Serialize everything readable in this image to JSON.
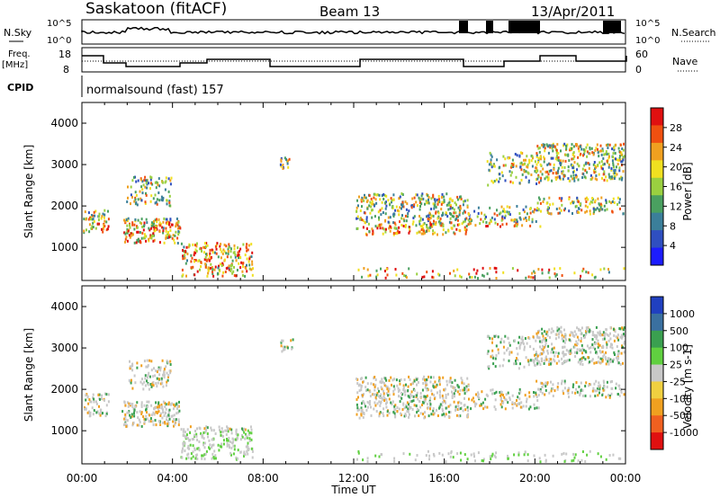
{
  "header": {
    "station": "Saskatoon (fitACF)",
    "beam": "Beam 13",
    "date": "13/Apr/2011"
  },
  "side_labels": {
    "nsky": "N.Sky",
    "nsearch": "N.Search",
    "freq_top": "Freq.",
    "freq_unit": "[MHz]",
    "nave": "Nave",
    "cpid": "CPID"
  },
  "cpid_text": "normalsound (fast) 157",
  "noise_panel": {
    "left_ticks": [
      "10^5",
      "10^0"
    ],
    "right_ticks": [
      "10^5",
      "10^0"
    ]
  },
  "freq_panel": {
    "left_ticks": [
      "18",
      "8"
    ],
    "right_ticks": [
      "60",
      "0"
    ]
  },
  "colors": {
    "power_scale": [
      "#1c1cff",
      "#2f4fc0",
      "#3b7f9a",
      "#4aa060",
      "#9ad040",
      "#f0e020",
      "#f0a020",
      "#f05010",
      "#e01010"
    ],
    "velocity_scale": [
      "#e01010",
      "#f06020",
      "#f0a020",
      "#f0d040",
      "#c8c8c8",
      "#60d040",
      "#3aa050",
      "#3a70a0",
      "#2040c0"
    ]
  },
  "chart_data": [
    {
      "type": "heatmap",
      "name": "power",
      "ylabel": "Slant Range [km]",
      "yticks": [
        1000,
        2000,
        3000,
        4000
      ],
      "ylim": [
        200,
        4500
      ],
      "xlabel": "",
      "colorbar_label": "Power [dB]",
      "colorbar_ticks": [
        "28",
        "24",
        "20",
        "16",
        "12",
        "8",
        "4"
      ]
    },
    {
      "type": "heatmap",
      "name": "velocity",
      "ylabel": "Slant Range [km]",
      "yticks": [
        1000,
        2000,
        3000,
        4000
      ],
      "ylim": [
        200,
        4500
      ],
      "xlabel": "Time UT",
      "xticks": [
        "00:00",
        "04:00",
        "08:00",
        "12:00",
        "16:00",
        "20:00",
        "00:00"
      ],
      "colorbar_label": "Velocity [m s-1]",
      "colorbar_ticks": [
        "1000",
        "500",
        "100",
        "25",
        "-25",
        "-100",
        "-500",
        "-1000"
      ]
    }
  ]
}
